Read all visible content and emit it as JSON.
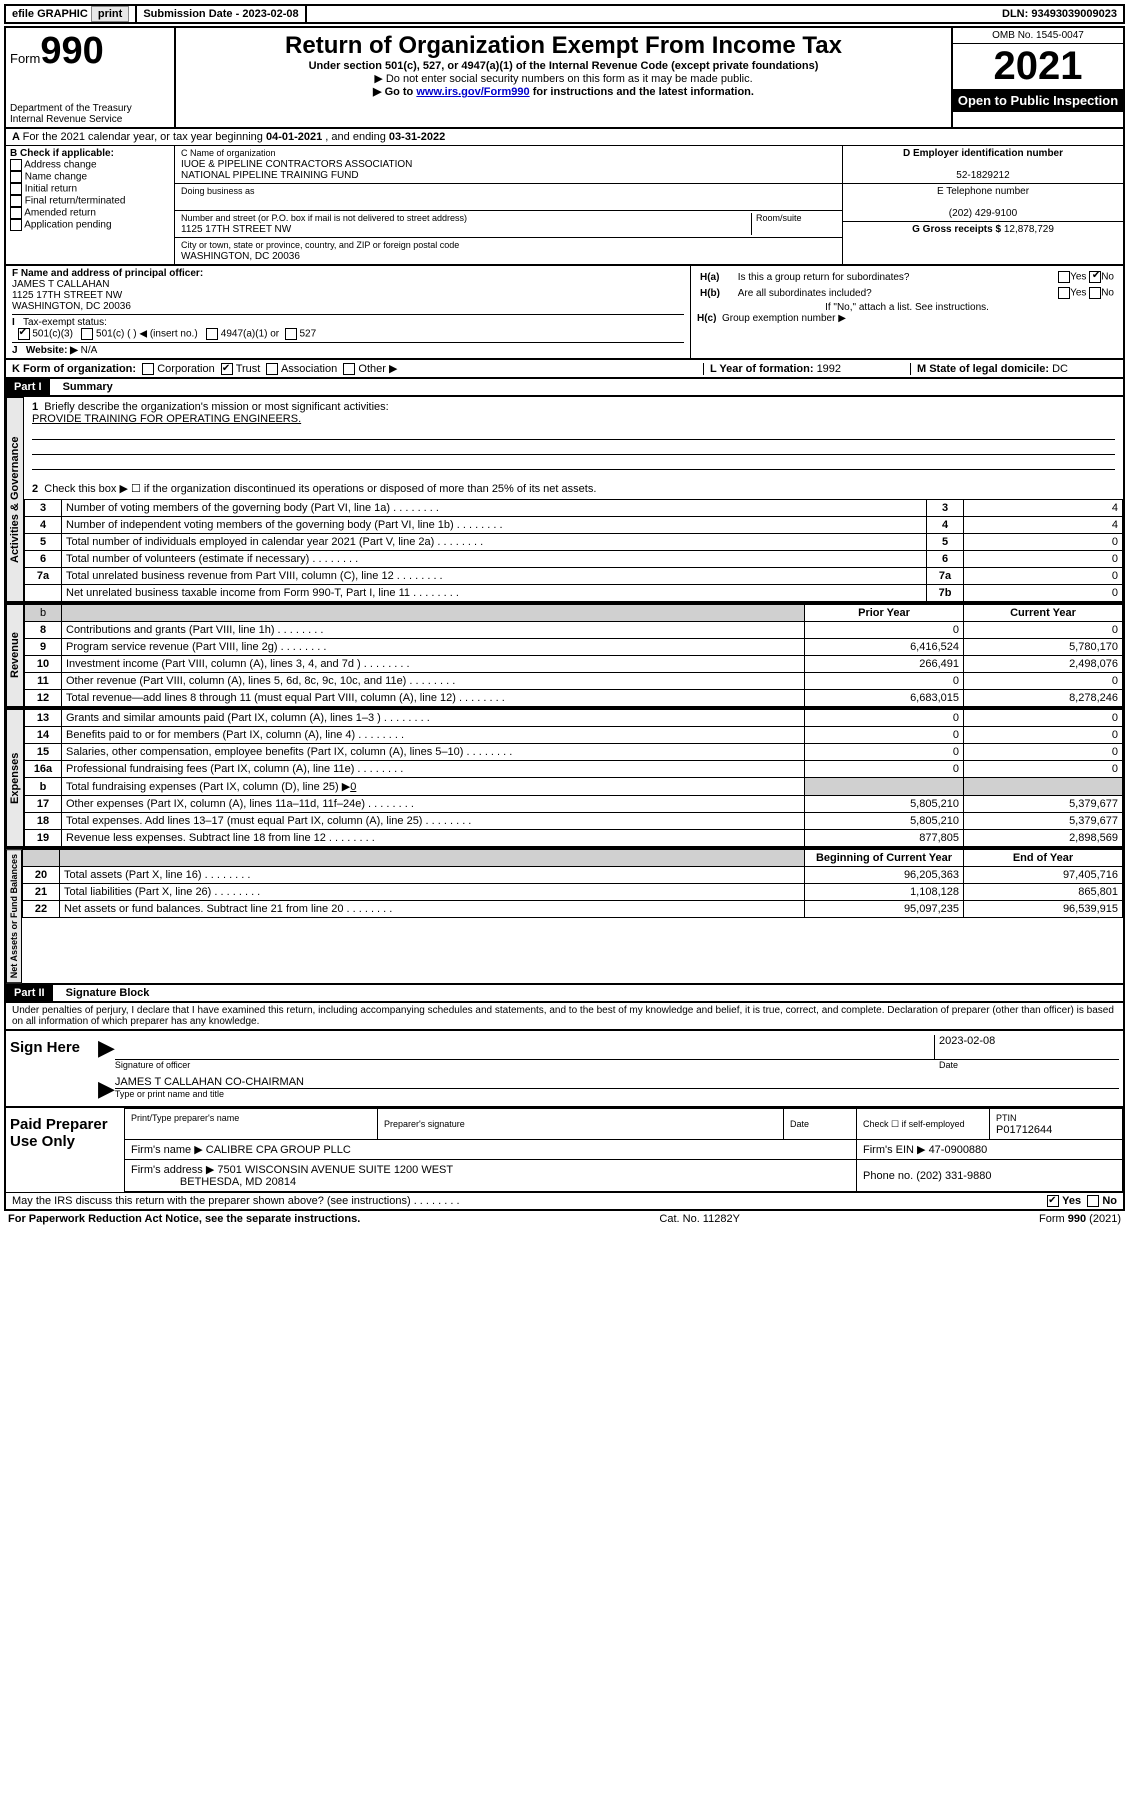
{
  "topbar": {
    "efile": "efile GRAPHIC",
    "print": "print",
    "sub_label": "Submission Date - ",
    "sub_date": "2023-02-08",
    "dln_label": "DLN: ",
    "dln": "93493039009023"
  },
  "header": {
    "form_prefix": "Form",
    "form_num": "990",
    "dept": "Department of the Treasury",
    "irs": "Internal Revenue Service",
    "title": "Return of Organization Exempt From Income Tax",
    "sub1": "Under section 501(c), 527, or 4947(a)(1) of the Internal Revenue Code (except private foundations)",
    "sub2": "▶ Do not enter social security numbers on this form as it may be made public.",
    "sub3_pre": "▶ Go to ",
    "sub3_link": "www.irs.gov/Form990",
    "sub3_post": " for instructions and the latest information.",
    "omb": "OMB No. 1545-0047",
    "year": "2021",
    "open": "Open to Public Inspection"
  },
  "rowA": {
    "text_pre": "For the 2021 calendar year, or tax year beginning ",
    "begin": "04-01-2021",
    "mid": " , and ending ",
    "end": "03-31-2022"
  },
  "colB": {
    "title": "B Check if applicable:",
    "opts": [
      "Address change",
      "Name change",
      "Initial return",
      "Final return/terminated",
      "Amended return",
      "Application pending"
    ]
  },
  "colC": {
    "name_label": "C Name of organization",
    "name1": "IUOE & PIPELINE CONTRACTORS ASSOCIATION",
    "name2": "NATIONAL PIPELINE TRAINING FUND",
    "dba": "Doing business as",
    "addr_label": "Number and street (or P.O. box if mail is not delivered to street address)",
    "room": "Room/suite",
    "addr": "1125 17TH STREET NW",
    "city_label": "City or town, state or province, country, and ZIP or foreign postal code",
    "city": "WASHINGTON, DC  20036"
  },
  "colD": {
    "d_label": "D Employer identification number",
    "ein": "52-1829212",
    "e_label": "E Telephone number",
    "phone": "(202) 429-9100",
    "g_label": "G Gross receipts $ ",
    "gross": "12,878,729"
  },
  "rowF": {
    "f_label": "F  Name and address of principal officer:",
    "name": "JAMES T CALLAHAN",
    "addr1": "1125 17TH STREET NW",
    "addr2": "WASHINGTON, DC  20036",
    "ha": "Is this a group return for subordinates?",
    "hb": "Are all subordinates included?",
    "hnote": "If \"No,\" attach a list. See instructions.",
    "hc": "Group exemption number ▶"
  },
  "rowI": {
    "label": "Tax-exempt status:",
    "o1": "501(c)(3)",
    "o2": "501(c) (  ) ◀ (insert no.)",
    "o3": "4947(a)(1) or",
    "o4": "527"
  },
  "rowJ": {
    "label": "Website: ▶",
    "val": "N/A"
  },
  "rowK": {
    "label": "K Form of organization:",
    "opts": [
      "Corporation",
      "Trust",
      "Association",
      "Other ▶"
    ],
    "l": "L Year of formation: ",
    "lval": "1992",
    "m": "M State of legal domicile: ",
    "mval": "DC"
  },
  "part1": {
    "hdr": "Part I",
    "title": "Summary",
    "q1": "Briefly describe the organization's mission or most significant activities:",
    "a1": "PROVIDE TRAINING FOR OPERATING ENGINEERS.",
    "q2": "Check this box ▶ ☐  if the organization discontinued its operations or disposed of more than 25% of its net assets."
  },
  "gov": {
    "tab": "Activities & Governance",
    "rows": [
      {
        "n": "3",
        "t": "Number of voting members of the governing body (Part VI, line 1a)",
        "box": "3",
        "v": "4"
      },
      {
        "n": "4",
        "t": "Number of independent voting members of the governing body (Part VI, line 1b)",
        "box": "4",
        "v": "4"
      },
      {
        "n": "5",
        "t": "Total number of individuals employed in calendar year 2021 (Part V, line 2a)",
        "box": "5",
        "v": "0"
      },
      {
        "n": "6",
        "t": "Total number of volunteers (estimate if necessary)",
        "box": "6",
        "v": "0"
      },
      {
        "n": "7a",
        "t": "Total unrelated business revenue from Part VIII, column (C), line 12",
        "box": "7a",
        "v": "0"
      },
      {
        "n": "",
        "t": "Net unrelated business taxable income from Form 990-T, Part I, line 11",
        "box": "7b",
        "v": "0"
      }
    ]
  },
  "rev": {
    "tab": "Revenue",
    "hdr_b": "b",
    "prior": "Prior Year",
    "curr": "Current Year",
    "rows": [
      {
        "n": "8",
        "t": "Contributions and grants (Part VIII, line 1h)",
        "p": "0",
        "c": "0"
      },
      {
        "n": "9",
        "t": "Program service revenue (Part VIII, line 2g)",
        "p": "6,416,524",
        "c": "5,780,170"
      },
      {
        "n": "10",
        "t": "Investment income (Part VIII, column (A), lines 3, 4, and 7d )",
        "p": "266,491",
        "c": "2,498,076"
      },
      {
        "n": "11",
        "t": "Other revenue (Part VIII, column (A), lines 5, 6d, 8c, 9c, 10c, and 11e)",
        "p": "0",
        "c": "0"
      },
      {
        "n": "12",
        "t": "Total revenue—add lines 8 through 11 (must equal Part VIII, column (A), line 12)",
        "p": "6,683,015",
        "c": "8,278,246"
      }
    ]
  },
  "exp": {
    "tab": "Expenses",
    "rows": [
      {
        "n": "13",
        "t": "Grants and similar amounts paid (Part IX, column (A), lines 1–3 )",
        "p": "0",
        "c": "0"
      },
      {
        "n": "14",
        "t": "Benefits paid to or for members (Part IX, column (A), line 4)",
        "p": "0",
        "c": "0"
      },
      {
        "n": "15",
        "t": "Salaries, other compensation, employee benefits (Part IX, column (A), lines 5–10)",
        "p": "0",
        "c": "0"
      },
      {
        "n": "16a",
        "t": "Professional fundraising fees (Part IX, column (A), line 11e)",
        "p": "0",
        "c": "0"
      }
    ],
    "b_pre": "Total fundraising expenses (Part IX, column (D), line 25) ▶",
    "b_val": "0",
    "rows2": [
      {
        "n": "17",
        "t": "Other expenses (Part IX, column (A), lines 11a–11d, 11f–24e)",
        "p": "5,805,210",
        "c": "5,379,677"
      },
      {
        "n": "18",
        "t": "Total expenses. Add lines 13–17 (must equal Part IX, column (A), line 25)",
        "p": "5,805,210",
        "c": "5,379,677"
      },
      {
        "n": "19",
        "t": "Revenue less expenses. Subtract line 18 from line 12",
        "p": "877,805",
        "c": "2,898,569"
      }
    ]
  },
  "net": {
    "tab": "Net Assets or Fund Balances",
    "begin": "Beginning of Current Year",
    "end": "End of Year",
    "rows": [
      {
        "n": "20",
        "t": "Total assets (Part X, line 16)",
        "p": "96,205,363",
        "c": "97,405,716"
      },
      {
        "n": "21",
        "t": "Total liabilities (Part X, line 26)",
        "p": "1,108,128",
        "c": "865,801"
      },
      {
        "n": "22",
        "t": "Net assets or fund balances. Subtract line 21 from line 20",
        "p": "95,097,235",
        "c": "96,539,915"
      }
    ]
  },
  "part2": {
    "hdr": "Part II",
    "title": "Signature Block",
    "decl": "Under penalties of perjury, I declare that I have examined this return, including accompanying schedules and statements, and to the best of my knowledge and belief, it is true, correct, and complete. Declaration of preparer (other than officer) is based on all information of which preparer has any knowledge."
  },
  "sign": {
    "here": "Sign Here",
    "sig_label": "Signature of officer",
    "date": "2023-02-08",
    "name": "JAMES T CALLAHAN  CO-CHAIRMAN",
    "name_label": "Type or print name and title"
  },
  "prep": {
    "title": "Paid Preparer Use Only",
    "h1": "Print/Type preparer's name",
    "h2": "Preparer's signature",
    "h3": "Date",
    "h4_pre": "Check ☐ if self-employed",
    "ptin_l": "PTIN",
    "ptin": "P01712644",
    "firm_l": "Firm's name   ▶",
    "firm": "CALIBRE CPA GROUP PLLC",
    "ein_l": "Firm's EIN ▶",
    "ein": "47-0900880",
    "addr_l": "Firm's address ▶",
    "addr1": "7501 WISCONSIN AVENUE SUITE 1200 WEST",
    "addr2": "BETHESDA, MD  20814",
    "phone_l": "Phone no. ",
    "phone": "(202) 331-9880"
  },
  "footer": {
    "q": "May the IRS discuss this return with the preparer shown above? (see instructions)",
    "yes": "Yes",
    "no": "No",
    "pra": "For Paperwork Reduction Act Notice, see the separate instructions.",
    "cat": "Cat. No. 11282Y",
    "form": "Form 990 (2021)"
  }
}
